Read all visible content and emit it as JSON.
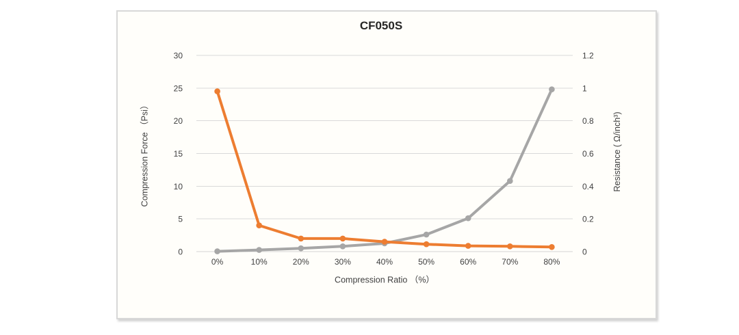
{
  "chart_data": {
    "type": "line",
    "title": "CF050S",
    "categories": [
      "0%",
      "10%",
      "20%",
      "30%",
      "40%",
      "50%",
      "60%",
      "70%",
      "80%"
    ],
    "x_axis": {
      "label": "Compression Ratio （%）"
    },
    "left_axis": {
      "label": "Compression Force （Psi）",
      "range": [
        0,
        30
      ],
      "tick_values": [
        0,
        5,
        10,
        15,
        20,
        25,
        30
      ],
      "tick_labels": [
        "0",
        "5",
        "10",
        "15",
        "20",
        "25",
        "30"
      ]
    },
    "right_axis": {
      "label": "Resistance ( Ω/inch³)",
      "range": [
        0,
        1.2
      ],
      "tick_values": [
        0,
        0.2,
        0.4,
        0.6,
        0.8,
        1,
        1.2
      ],
      "tick_labels": [
        "0",
        "0.2",
        "0.4",
        "0.6",
        "0.8",
        "1",
        "1.2"
      ]
    },
    "series": [
      {
        "name": "Compression Force",
        "axis": "left",
        "color": "#a6a6a6",
        "values": [
          0.04,
          0.25,
          0.5,
          0.8,
          1.25,
          2.6,
          5.1,
          10.8,
          24.8
        ]
      },
      {
        "name": "Resistance",
        "axis": "right",
        "color": "#ed7d31",
        "values": [
          0.98,
          0.16,
          0.08,
          0.08,
          0.06,
          0.045,
          0.035,
          0.032,
          0.028
        ]
      }
    ],
    "grid": true,
    "legend": false,
    "styles": {
      "gridline_color": "#d9d9d9",
      "axis_line_color": "#d4d4d4",
      "tick_label_color": "#404040",
      "title_color": "#262626",
      "panel_background": "#fffefa",
      "panel_border": "#d8d8d8"
    }
  }
}
